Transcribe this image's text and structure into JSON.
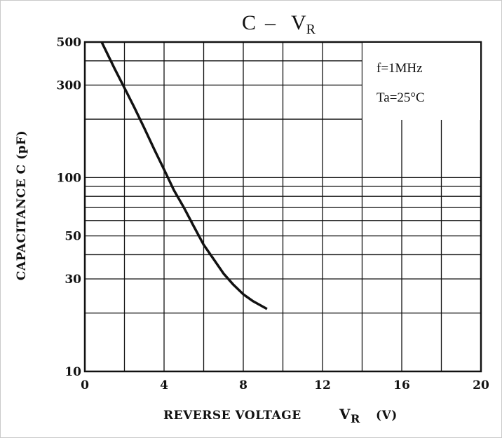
{
  "chart_data": {
    "type": "line",
    "title": "C",
    "title_dash": "–",
    "title_v": "V",
    "title_sub": "R",
    "xlabel": "REVERSE VOLTAGE",
    "xlabel_v": "V",
    "xlabel_sub": "R",
    "xlabel_unit": "(V)",
    "ylabel": "CAPACITANCE   C   (pF)",
    "xlim": [
      0,
      20
    ],
    "ylim": [
      10,
      500
    ],
    "y_scale": "log",
    "x_ticks": [
      0,
      4,
      8,
      12,
      16,
      20
    ],
    "x_tick_labels": [
      "0",
      "4",
      "8",
      "12",
      "16",
      "20"
    ],
    "y_ticks": [
      10,
      30,
      50,
      100,
      300,
      500
    ],
    "y_tick_labels": [
      "10",
      "30",
      "50",
      "100",
      "300",
      "500"
    ],
    "grid": true,
    "annotations": [
      "f=1MHz",
      "Ta=25°C"
    ],
    "series": [
      {
        "x": [
          0.85,
          1.5,
          2.0,
          2.5,
          3.0,
          3.5,
          4.0,
          4.5,
          5.0,
          5.5,
          6.0,
          6.5,
          7.0,
          7.5,
          8.0,
          8.5,
          9.2
        ],
        "y": [
          500,
          365,
          290,
          230,
          180,
          140,
          110,
          86,
          70,
          56,
          45,
          38,
          32,
          28,
          25,
          23,
          21
        ]
      }
    ]
  }
}
